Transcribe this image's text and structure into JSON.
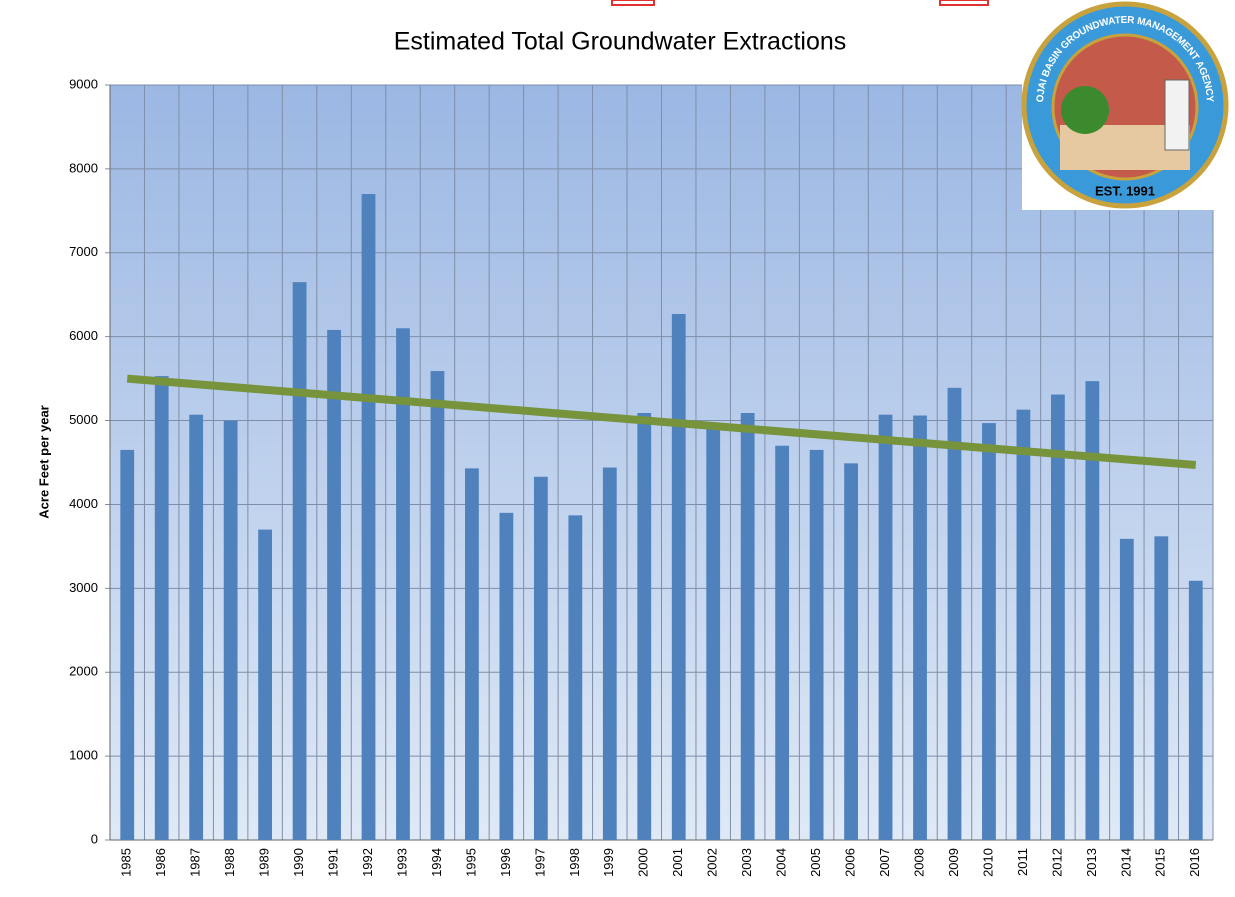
{
  "chart_data": {
    "type": "bar",
    "title": "Estimated Total Groundwater Extractions",
    "y_label": "Acre Feet per year",
    "categories": [
      "1985",
      "1986",
      "1987",
      "1988",
      "1989",
      "1990",
      "1991",
      "1992",
      "1993",
      "1994",
      "1995",
      "1996",
      "1997",
      "1998",
      "1999",
      "2000",
      "2001",
      "2002",
      "2003",
      "2004",
      "2005",
      "2006",
      "2007",
      "2008",
      "2009",
      "2010",
      "2011",
      "2012",
      "2013",
      "2014",
      "2015",
      "2016"
    ],
    "values": [
      4650,
      5530,
      5070,
      5000,
      3700,
      6650,
      6080,
      7700,
      6100,
      5590,
      4430,
      3900,
      4330,
      3870,
      4440,
      5090,
      6270,
      4970,
      5090,
      4700,
      4650,
      4490,
      5070,
      5060,
      5390,
      4970,
      5130,
      5310,
      5470,
      3590,
      3620,
      3090
    ],
    "color": "#4f81bd",
    "trend": {
      "color": "#77933c",
      "x": [
        "1985",
        "2016"
      ],
      "values": [
        5500,
        4470
      ]
    },
    "ylim": [
      0,
      9000
    ],
    "yticks": [
      0,
      1000,
      2000,
      3000,
      4000,
      5000,
      6000,
      7000,
      8000,
      9000
    ],
    "grid": true
  },
  "logo": {
    "text": "OJAI BASIN GROUNDWATER MANAGEMENT AGENCY",
    "est": "EST. 1991"
  }
}
